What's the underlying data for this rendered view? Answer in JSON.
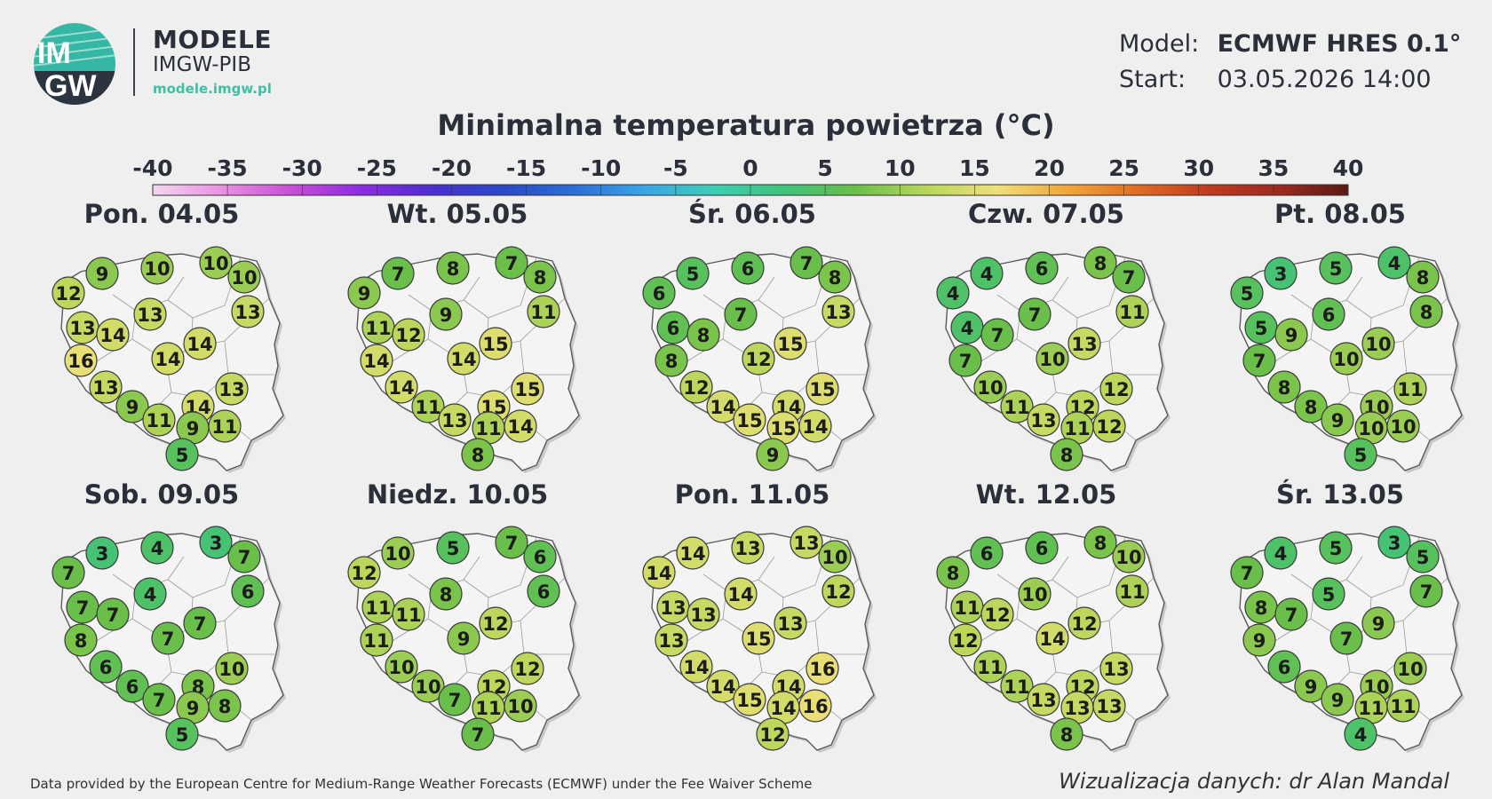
{
  "header": {
    "logo_text_top": "IM",
    "logo_text_bottom": "GW",
    "brand_name": "MODELE",
    "brand_org": "IMGW-PIB",
    "brand_url": "modele.imgw.pl"
  },
  "meta": {
    "model_label": "Model:",
    "model_value": "ECMWF HRES 0.1°",
    "start_label": "Start:",
    "start_value": "03.05.2026 14:00"
  },
  "title": "Minimalna temperatura powietrza (°C)",
  "scale": {
    "ticks": [
      "-40",
      "-35",
      "-30",
      "-25",
      "-20",
      "-15",
      "-10",
      "-5",
      "0",
      "5",
      "10",
      "15",
      "20",
      "25",
      "30",
      "35",
      "40"
    ],
    "min": -40,
    "max": 40,
    "colors": [
      "#f3d7ee",
      "#e98fe2",
      "#c94bd8",
      "#8a2be2",
      "#4b2fcf",
      "#2a49c8",
      "#2b6fd6",
      "#3aa6e8",
      "#3dcfb2",
      "#3fc37a",
      "#6abf49",
      "#b9d65a",
      "#efe07a",
      "#f1a63a",
      "#e06d22",
      "#c23b1f",
      "#9e2a20",
      "#5a1a14"
    ]
  },
  "panels": [
    {
      "label": "Pon. 04.05",
      "values": [
        12,
        9,
        10,
        10,
        10,
        13,
        13,
        14,
        13,
        16,
        14,
        14,
        13,
        14,
        13,
        9,
        11,
        9,
        11,
        5
      ]
    },
    {
      "label": "Wt. 05.05",
      "values": [
        9,
        7,
        8,
        7,
        8,
        11,
        11,
        12,
        9,
        14,
        14,
        15,
        14,
        15,
        15,
        11,
        13,
        11,
        14,
        8
      ]
    },
    {
      "label": "Śr. 06.05",
      "values": [
        6,
        5,
        6,
        7,
        8,
        6,
        13,
        8,
        7,
        8,
        12,
        15,
        12,
        14,
        15,
        14,
        15,
        15,
        14,
        9
      ]
    },
    {
      "label": "Czw. 07.05",
      "values": [
        4,
        4,
        6,
        8,
        7,
        4,
        11,
        7,
        7,
        7,
        10,
        13,
        10,
        12,
        12,
        11,
        13,
        11,
        12,
        8
      ]
    },
    {
      "label": "Pt. 08.05",
      "values": [
        5,
        3,
        5,
        4,
        8,
        5,
        8,
        9,
        6,
        7,
        10,
        10,
        8,
        10,
        11,
        8,
        9,
        10,
        10,
        5
      ]
    },
    {
      "label": "Sob. 09.05",
      "values": [
        7,
        3,
        4,
        3,
        7,
        7,
        6,
        7,
        4,
        8,
        7,
        7,
        6,
        8,
        10,
        6,
        7,
        9,
        8,
        5
      ]
    },
    {
      "label": "Niedz. 10.05",
      "values": [
        12,
        10,
        5,
        7,
        6,
        11,
        6,
        11,
        8,
        11,
        9,
        12,
        10,
        12,
        12,
        10,
        7,
        11,
        10,
        7
      ]
    },
    {
      "label": "Pon. 11.05",
      "values": [
        14,
        14,
        13,
        13,
        10,
        13,
        12,
        13,
        14,
        13,
        15,
        13,
        14,
        14,
        16,
        14,
        15,
        14,
        16,
        12
      ]
    },
    {
      "label": "Wt. 12.05",
      "values": [
        8,
        6,
        6,
        8,
        10,
        11,
        11,
        12,
        10,
        12,
        14,
        12,
        11,
        12,
        13,
        11,
        13,
        13,
        13,
        8
      ]
    },
    {
      "label": "Śr. 13.05",
      "values": [
        7,
        4,
        5,
        3,
        5,
        8,
        7,
        7,
        5,
        9,
        7,
        9,
        6,
        10,
        10,
        9,
        9,
        11,
        11,
        4
      ]
    }
  ],
  "footer": {
    "credit": "Data provided by the European Centre for Medium-Range Weather Forecasts (ECMWF) under the Fee Waiver Scheme",
    "author": "Wizualizacja danych: dr Alan Mandal"
  }
}
